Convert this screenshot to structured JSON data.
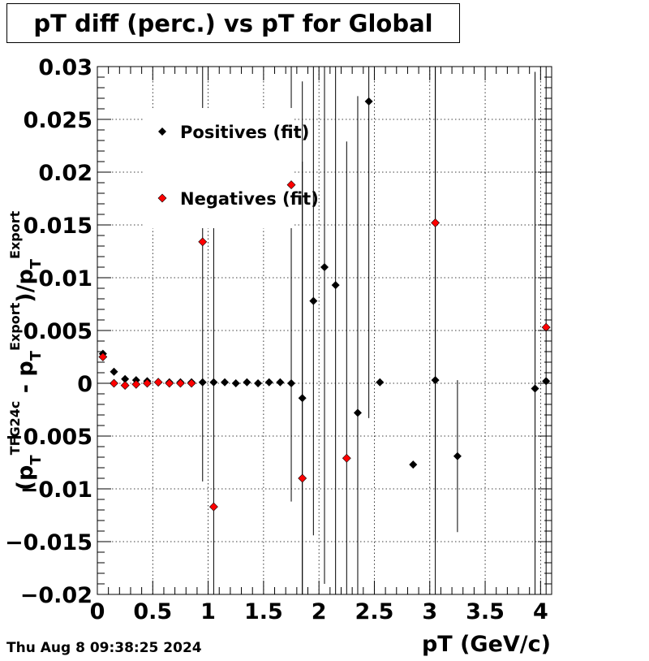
{
  "chart_data": {
    "type": "scatter",
    "title": "pT diff (perc.) vs pT for Global",
    "xlabel": "pT (GeV/c)",
    "ylabel_parts": [
      "(p",
      "T",
      "TFG24c",
      " - p",
      "T",
      "Export",
      ")/p",
      "T",
      "Export"
    ],
    "xlim": [
      0,
      4.1
    ],
    "ylim": [
      -0.02,
      0.03
    ],
    "x_ticks": [
      "0",
      "0.5",
      "1",
      "1.5",
      "2",
      "2.5",
      "3",
      "3.5",
      "4"
    ],
    "y_ticks": [
      "0.03",
      "0.025",
      "0.02",
      "0.015",
      "0.01",
      "0.005",
      "0",
      "−0.005",
      "−0.01",
      "−0.015",
      "−0.02"
    ],
    "grid": true,
    "legend_position": "top-left",
    "series": [
      {
        "name": "Positives (fit)",
        "color": "#000000",
        "points": [
          {
            "x": 0.05,
            "y": 0.0028,
            "err": 0.0002
          },
          {
            "x": 0.15,
            "y": 0.0011,
            "err": 0.0001
          },
          {
            "x": 0.25,
            "y": 0.0004,
            "err": 0.0001
          },
          {
            "x": 0.35,
            "y": 0.0003,
            "err": 0.0001
          },
          {
            "x": 0.45,
            "y": 0.0002,
            "err": 0.0001
          },
          {
            "x": 0.55,
            "y": 0.0001,
            "err": 0.0001
          },
          {
            "x": 0.65,
            "y": 0.0001,
            "err": 0.0001
          },
          {
            "x": 0.75,
            "y": 0.0001,
            "err": 0.0001
          },
          {
            "x": 0.85,
            "y": 0.0001,
            "err": 0.0001
          },
          {
            "x": 0.95,
            "y": 0.0001,
            "err": 0.0001
          },
          {
            "x": 1.05,
            "y": 0.0001,
            "err": 0.0001
          },
          {
            "x": 1.15,
            "y": 0.0001,
            "err": 0.0001
          },
          {
            "x": 1.25,
            "y": 0.0,
            "err": 0.0001
          },
          {
            "x": 1.35,
            "y": 0.0001,
            "err": 0.0001
          },
          {
            "x": 1.45,
            "y": 0.0,
            "err": 0.0001
          },
          {
            "x": 1.55,
            "y": 0.0001,
            "err": 0.0001
          },
          {
            "x": 1.65,
            "y": 0.0001,
            "err": 0.0001
          },
          {
            "x": 1.75,
            "y": 0.0,
            "err": 0.0001
          },
          {
            "x": 1.85,
            "y": -0.0014,
            "err": 0.03
          },
          {
            "x": 1.95,
            "y": 0.0078,
            "err": 0.0222
          },
          {
            "x": 2.05,
            "y": 0.011,
            "err": 0.03
          },
          {
            "x": 2.15,
            "y": 0.0093,
            "err": 0.03
          },
          {
            "x": 2.35,
            "y": -0.0028,
            "err": 0.03
          },
          {
            "x": 2.45,
            "y": 0.0267,
            "err": 0.03
          },
          {
            "x": 2.55,
            "y": 0.0001,
            "err": 0.0001
          },
          {
            "x": 2.85,
            "y": -0.0077,
            "err": 0.0001
          },
          {
            "x": 3.05,
            "y": 0.0003,
            "err": 0.03
          },
          {
            "x": 3.25,
            "y": -0.0069,
            "err": 0.0072
          },
          {
            "x": 3.95,
            "y": -0.0005,
            "err": 0.03
          },
          {
            "x": 4.05,
            "y": 0.0002,
            "err": 0.03
          }
        ]
      },
      {
        "name": "Negatives (fit)",
        "color": "#ff0000",
        "points": [
          {
            "x": 0.05,
            "y": 0.0025,
            "err": 0.0002
          },
          {
            "x": 0.15,
            "y": 0.0,
            "err": 0.0001
          },
          {
            "x": 0.25,
            "y": -0.0002,
            "err": 0.0001
          },
          {
            "x": 0.35,
            "y": -0.0001,
            "err": 0.0001
          },
          {
            "x": 0.45,
            "y": 0.0,
            "err": 0.0001
          },
          {
            "x": 0.55,
            "y": 0.0001,
            "err": 0.0001
          },
          {
            "x": 0.65,
            "y": 0.0,
            "err": 0.0001
          },
          {
            "x": 0.75,
            "y": 0.0,
            "err": 0.0001
          },
          {
            "x": 0.85,
            "y": 0.0,
            "err": 0.0001
          },
          {
            "x": 0.95,
            "y": 0.0134,
            "err": 0.0227
          },
          {
            "x": 1.05,
            "y": -0.0117,
            "err": 0.03
          },
          {
            "x": 1.75,
            "y": 0.0188,
            "err": 0.03
          },
          {
            "x": 1.85,
            "y": -0.009,
            "err": 0.03
          },
          {
            "x": 2.25,
            "y": -0.0071,
            "err": 0.03
          },
          {
            "x": 3.05,
            "y": 0.0152,
            "err": 0.03
          },
          {
            "x": 4.05,
            "y": 0.0053,
            "err": 0.0001
          }
        ]
      }
    ]
  },
  "footer": {
    "timestamp": "Thu Aug  8 09:38:25 2024"
  }
}
